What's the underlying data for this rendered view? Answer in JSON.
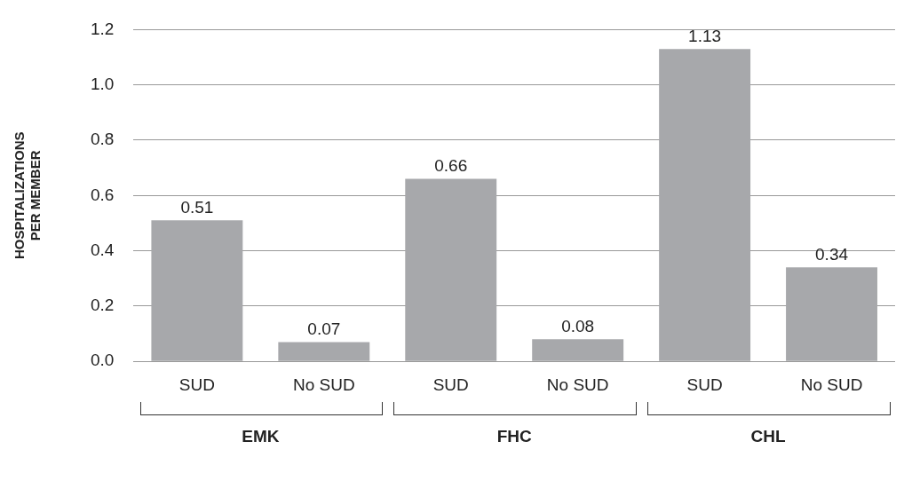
{
  "chart_data": {
    "type": "bar",
    "ylabel": "HOSPITALIZATIONS\nPER MEMBER",
    "categories": [
      "SUD",
      "No SUD",
      "SUD",
      "No SUD",
      "SUD",
      "No SUD"
    ],
    "values": [
      0.51,
      0.07,
      0.66,
      0.08,
      1.13,
      0.34
    ],
    "color": "#a7a8ab",
    "ylim": [
      0,
      1.2
    ],
    "yticks": [
      {
        "value": 0,
        "label": "0.0"
      },
      {
        "value": 0.2,
        "label": "0.2"
      },
      {
        "value": 0.4,
        "label": "0.4"
      },
      {
        "value": 0.6,
        "label": "0.6"
      },
      {
        "value": 0.8,
        "label": "0.8"
      },
      {
        "value": 1.0,
        "label": "1.0"
      },
      {
        "value": 1.2,
        "label": "1.2"
      }
    ],
    "grid": "y",
    "data_labels": true,
    "legend": false,
    "annotations": [
      "EMK",
      "FHC",
      "CHL"
    ]
  }
}
